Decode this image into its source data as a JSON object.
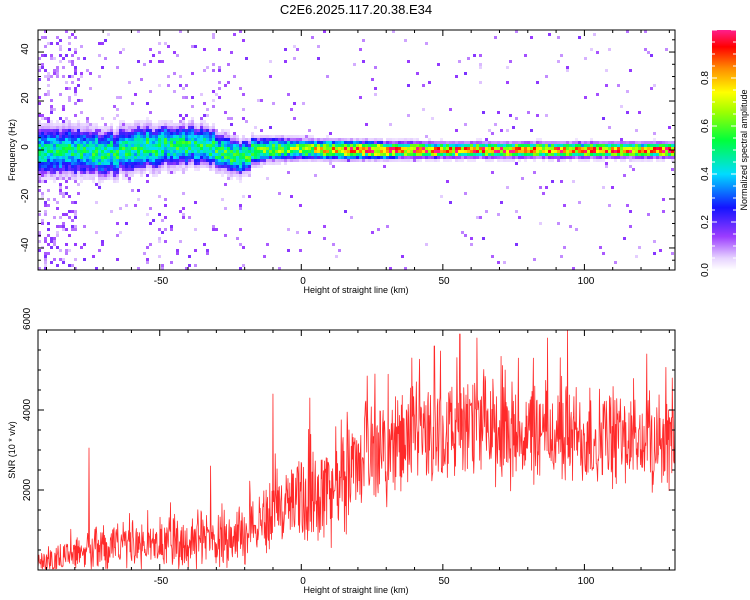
{
  "figure": {
    "title": "C2E6.2025.117.20.38.E34",
    "colors": {
      "signal": "#ff2a2a",
      "background": "#ffffff",
      "axes": "#000000"
    }
  },
  "chart_data": [
    {
      "type": "heatmap",
      "panel": "top",
      "xlabel": "Height of straight line (km)",
      "ylabel": "Frequency (Hz)",
      "xlim": [
        -93,
        132
      ],
      "ylim": [
        -49,
        49
      ],
      "x_tick_labels": [
        "-50",
        "0",
        "50",
        "100"
      ],
      "y_tick_labels": [
        "-40",
        "-20",
        "0",
        "20",
        "40"
      ],
      "colorbar": {
        "label": "Normalized spectral amplitude",
        "range": [
          0,
          1
        ],
        "tick_labels": [
          "0.0",
          "0.2",
          "0.4",
          "0.6",
          "0.8"
        ],
        "colormap": "rainbow (violet-blue-cyan-green-yellow-red)"
      },
      "band_center_hz": [
        [
          -93,
          0
        ],
        [
          -80,
          0
        ],
        [
          -70,
          -1
        ],
        [
          -60,
          1
        ],
        [
          -50,
          2
        ],
        [
          -40,
          3
        ],
        [
          -33,
          2
        ],
        [
          -27,
          -1
        ],
        [
          -22,
          -3
        ],
        [
          -18,
          0
        ],
        [
          -10,
          1
        ],
        [
          0,
          1
        ],
        [
          20,
          0.5
        ],
        [
          50,
          0.5
        ],
        [
          80,
          0.5
        ],
        [
          100,
          0.5
        ],
        [
          132,
          0.5
        ]
      ],
      "band_halfwidth_hz": [
        [
          -93,
          10
        ],
        [
          -60,
          9
        ],
        [
          -40,
          8
        ],
        [
          -22,
          7
        ],
        [
          -15,
          5
        ],
        [
          0,
          4
        ],
        [
          50,
          3
        ],
        [
          132,
          3
        ]
      ],
      "peak_amplitude": [
        [
          -93,
          0.5
        ],
        [
          -60,
          0.55
        ],
        [
          -40,
          0.55
        ],
        [
          -20,
          0.6
        ],
        [
          0,
          0.7
        ],
        [
          10,
          0.85
        ],
        [
          20,
          0.95
        ],
        [
          132,
          0.95
        ]
      ]
    },
    {
      "type": "line",
      "panel": "bottom",
      "xlabel": "Height of straight line (km)",
      "ylabel": "SNR (10 * v/v)",
      "xlim": [
        -93,
        132
      ],
      "ylim": [
        0,
        6000
      ],
      "x_tick_labels": [
        "-50",
        "0",
        "50",
        "100"
      ],
      "y_tick_labels": [
        "2000",
        "4000",
        "6000"
      ],
      "series": [
        {
          "color": "#ff2a2a",
          "envelope_x": [
            -93,
            -85,
            -75,
            -60,
            -50,
            -40,
            -30,
            -20,
            -15,
            -10,
            -5,
            0,
            10,
            15,
            20,
            30,
            40,
            50,
            60,
            70,
            80,
            90,
            100,
            110,
            120,
            132
          ],
          "envelope_mean": [
            200,
            300,
            500,
            600,
            650,
            700,
            800,
            900,
            1200,
            1400,
            1600,
            1800,
            2000,
            2200,
            2700,
            3000,
            3300,
            3500,
            3500,
            3400,
            3400,
            3400,
            3300,
            3300,
            3200,
            3200
          ],
          "envelope_spread": [
            250,
            400,
            500,
            600,
            650,
            700,
            750,
            800,
            900,
            1000,
            1100,
            1200,
            1300,
            1300,
            1300,
            1300,
            1300,
            1300,
            1300,
            1300,
            1300,
            1300,
            1300,
            1300,
            1200,
            1200
          ],
          "peaks": [
            [
              -75,
              3050
            ],
            [
              -32,
              2600
            ],
            [
              -10,
              4400
            ],
            [
              3,
              4300
            ],
            [
              26,
              4900
            ],
            [
              39,
              5300
            ],
            [
              47,
              5600
            ],
            [
              56,
              5900
            ],
            [
              62,
              5800
            ],
            [
              72,
              5000
            ],
            [
              87,
              5800
            ],
            [
              94,
              6000
            ],
            [
              122,
              5400
            ],
            [
              131,
              4800
            ]
          ]
        }
      ]
    }
  ]
}
